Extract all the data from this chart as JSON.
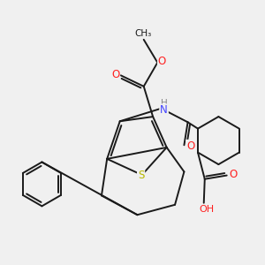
{
  "background_color": "#f0f0f0",
  "bond_color": "#1a1a1a",
  "atom_colors": {
    "S": "#b8b800",
    "N": "#4444ff",
    "O": "#ff2020",
    "H": "#888888",
    "C": "#1a1a1a"
  },
  "figsize": [
    3.0,
    3.0
  ],
  "dpi": 100
}
